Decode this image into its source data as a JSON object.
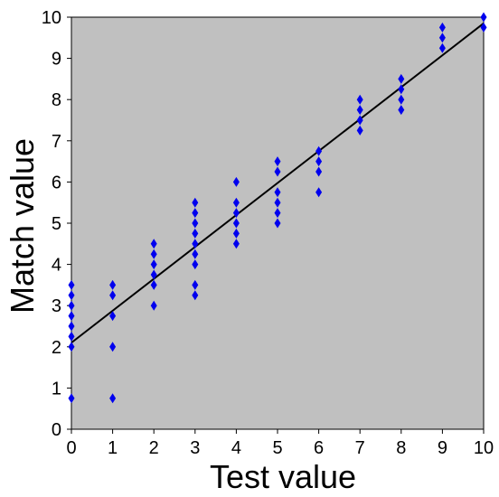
{
  "chart_data": {
    "type": "scatter",
    "title": "",
    "xlabel": "Test value",
    "ylabel": "Match value",
    "xlim": [
      0,
      10
    ],
    "ylim": [
      0,
      10
    ],
    "x_ticks": [
      "0",
      "1",
      "2",
      "3",
      "4",
      "5",
      "6",
      "7",
      "8",
      "9",
      "10"
    ],
    "y_ticks": [
      "0",
      "1",
      "2",
      "3",
      "4",
      "5",
      "6",
      "7",
      "8",
      "9",
      "10"
    ],
    "grid": false,
    "legend": "none",
    "colors": {
      "plot_background": "#c0c0c0",
      "marker": "#0000ee",
      "trendline": "#000000"
    },
    "series": [
      {
        "marker": "diamond",
        "points": [
          [
            0,
            0.75
          ],
          [
            0,
            2.0
          ],
          [
            0,
            2.25
          ],
          [
            0,
            2.5
          ],
          [
            0,
            2.75
          ],
          [
            0,
            3.0
          ],
          [
            0,
            3.25
          ],
          [
            0,
            3.5
          ],
          [
            1,
            0.75
          ],
          [
            1,
            2.0
          ],
          [
            1,
            2.75
          ],
          [
            1,
            3.25
          ],
          [
            1,
            3.5
          ],
          [
            2,
            3.0
          ],
          [
            2,
            3.5
          ],
          [
            2,
            3.75
          ],
          [
            2,
            4.0
          ],
          [
            2,
            4.25
          ],
          [
            2,
            4.5
          ],
          [
            3,
            3.25
          ],
          [
            3,
            3.5
          ],
          [
            3,
            4.0
          ],
          [
            3,
            4.25
          ],
          [
            3,
            4.5
          ],
          [
            3,
            4.75
          ],
          [
            3,
            5.0
          ],
          [
            3,
            5.25
          ],
          [
            3,
            5.5
          ],
          [
            4,
            4.5
          ],
          [
            4,
            4.75
          ],
          [
            4,
            5.0
          ],
          [
            4,
            5.25
          ],
          [
            4,
            5.5
          ],
          [
            4,
            6.0
          ],
          [
            5,
            5.0
          ],
          [
            5,
            5.25
          ],
          [
            5,
            5.5
          ],
          [
            5,
            5.75
          ],
          [
            5,
            6.25
          ],
          [
            5,
            6.5
          ],
          [
            6,
            5.75
          ],
          [
            6,
            6.25
          ],
          [
            6,
            6.5
          ],
          [
            6,
            6.75
          ],
          [
            7,
            7.25
          ],
          [
            7,
            7.5
          ],
          [
            7,
            7.75
          ],
          [
            7,
            8.0
          ],
          [
            8,
            7.75
          ],
          [
            8,
            8.0
          ],
          [
            8,
            8.25
          ],
          [
            8,
            8.5
          ],
          [
            9,
            9.25
          ],
          [
            9,
            9.5
          ],
          [
            9,
            9.75
          ],
          [
            10,
            9.75
          ],
          [
            10,
            10.0
          ]
        ]
      }
    ],
    "trendline": {
      "from": [
        0,
        2.1
      ],
      "to": [
        10,
        9.85
      ]
    }
  }
}
